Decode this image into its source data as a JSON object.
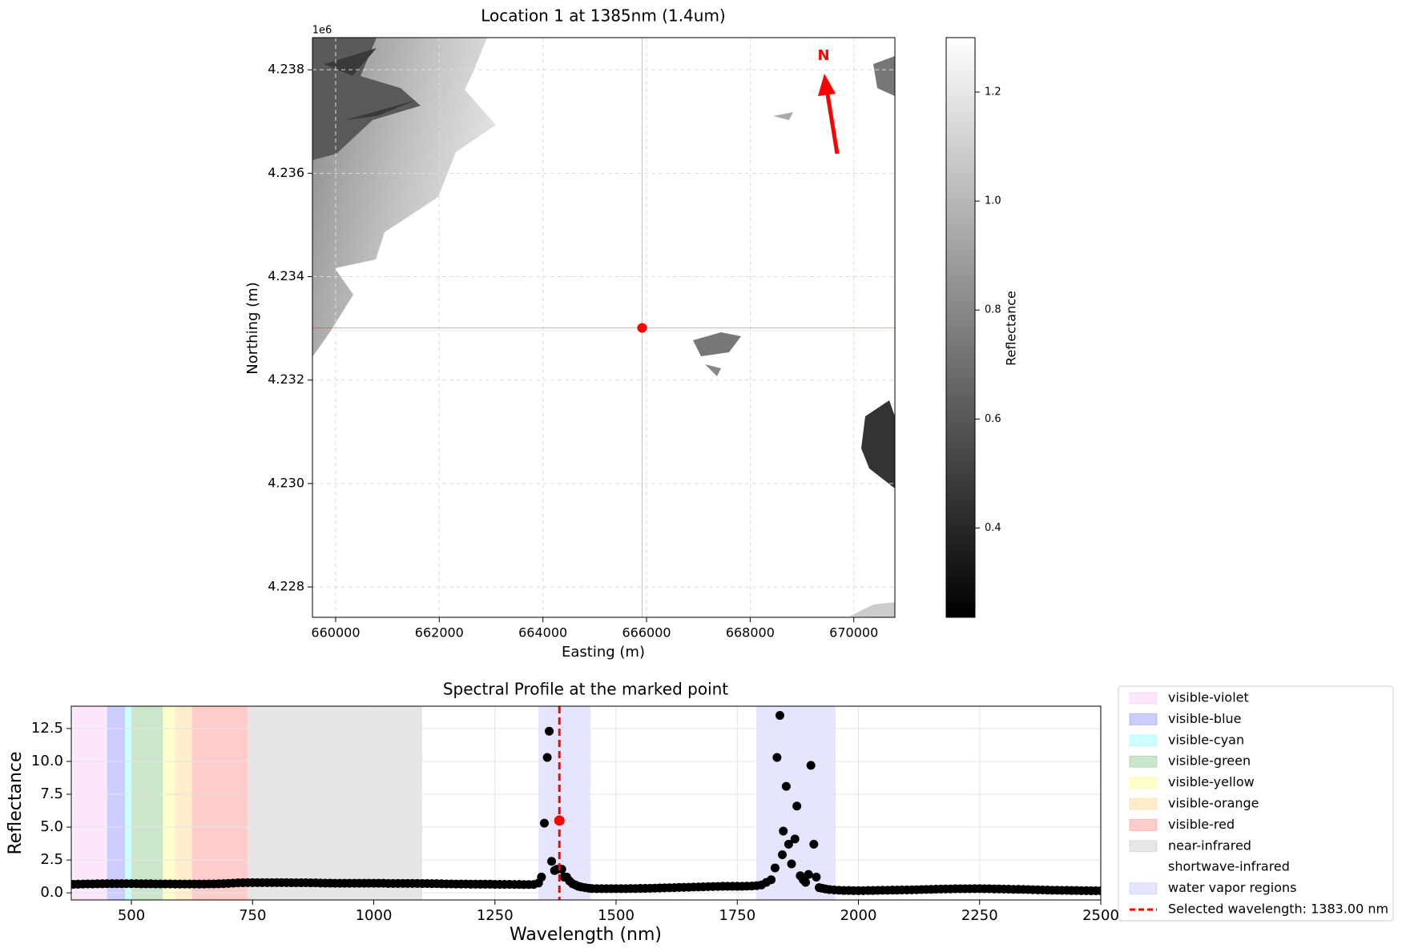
{
  "chart_data": [
    {
      "type": "map",
      "title": "Location 1 at 1385nm (1.4um)",
      "x_label": "Easting (m)",
      "y_label": "Northing (m)",
      "y_offset_label": "1e6",
      "xlim": [
        659552,
        670793
      ],
      "ylim": [
        4227413,
        4238622
      ],
      "xticks": [
        660000,
        662000,
        664000,
        666000,
        668000,
        670000
      ],
      "yticks": [
        {
          "value": 4228000,
          "label": "4.228"
        },
        {
          "value": 4230000,
          "label": "4.230"
        },
        {
          "value": 4232000,
          "label": "4.232"
        },
        {
          "value": 4234000,
          "label": "4.234"
        },
        {
          "value": 4236000,
          "label": "4.236"
        },
        {
          "value": 4238000,
          "label": "4.238"
        }
      ],
      "grid": true,
      "marker": {
        "x": 665914,
        "y": 4233009,
        "color": "#ff0000"
      },
      "north_label": "N",
      "colorbar": {
        "label": "Reflectance",
        "lim": [
          0.236,
          1.3
        ],
        "ticks": [
          0.4,
          0.6,
          0.8,
          {
            "value": 1,
            "label": "1.0"
          },
          1.2
        ]
      }
    },
    {
      "type": "scatter",
      "title": "Spectral Profile at the marked point",
      "x_label": "Wavelength (nm)",
      "y_label": "Reflectance",
      "xlim": [
        376,
        2500
      ],
      "ylim": [
        -0.54,
        14.2
      ],
      "xticks": [
        500,
        750,
        1000,
        1250,
        1500,
        1750,
        2000,
        2250,
        2500
      ],
      "yticks": [
        {
          "value": 0,
          "label": "0.0"
        },
        2.5,
        {
          "value": 5,
          "label": "5.0"
        },
        7.5,
        {
          "value": 10,
          "label": "10.0"
        },
        12.5
      ],
      "grid": true,
      "regions": [
        {
          "name": "visible-violet",
          "color": "#ee82ee",
          "alpha": 0.2,
          "ranges": [
            [
              380,
              450
            ]
          ]
        },
        {
          "name": "visible-blue",
          "color": "#0000ff",
          "alpha": 0.2,
          "ranges": [
            [
              450,
              487
            ]
          ]
        },
        {
          "name": "visible-cyan",
          "color": "#00ffff",
          "alpha": 0.2,
          "ranges": [
            [
              487,
              500
            ]
          ]
        },
        {
          "name": "visible-green",
          "color": "#008000",
          "alpha": 0.2,
          "ranges": [
            [
              500,
              565
            ]
          ]
        },
        {
          "name": "visible-yellow",
          "color": "#ffff00",
          "alpha": 0.2,
          "ranges": [
            [
              565,
              590
            ]
          ]
        },
        {
          "name": "visible-orange",
          "color": "#ffa500",
          "alpha": 0.2,
          "ranges": [
            [
              590,
              625
            ]
          ]
        },
        {
          "name": "visible-red",
          "color": "#ff0000",
          "alpha": 0.2,
          "ranges": [
            [
              625,
              740
            ]
          ]
        },
        {
          "name": "near-infrared",
          "color": "#808080",
          "alpha": 0.2,
          "ranges": [
            [
              740,
              1100
            ]
          ]
        },
        {
          "name": "shortwave-infrared",
          "color": "#ffffff",
          "alpha": 0.2,
          "ranges": [
            [
              1100,
              2500
            ]
          ]
        },
        {
          "name": "water vapor regions",
          "color": "#0000ff",
          "alpha": 0.1,
          "ranges": [
            [
              1340,
              1447
            ],
            [
              1789,
              1953
            ]
          ]
        }
      ],
      "series": [
        {
          "color": "#000000",
          "x": [
            380,
            390,
            400,
            410,
            420,
            430,
            440,
            450,
            460,
            470,
            480,
            490,
            500,
            510,
            520,
            530,
            540,
            550,
            560,
            570,
            580,
            590,
            600,
            610,
            620,
            630,
            640,
            650,
            660,
            670,
            680,
            690,
            700,
            710,
            720,
            730,
            740,
            750,
            760,
            770,
            780,
            790,
            800,
            810,
            820,
            830,
            840,
            850,
            860,
            870,
            880,
            890,
            900,
            910,
            920,
            930,
            940,
            950,
            960,
            970,
            980,
            990,
            1000,
            1010,
            1020,
            1030,
            1040,
            1050,
            1060,
            1070,
            1080,
            1090,
            1100,
            1110,
            1120,
            1130,
            1140,
            1150,
            1160,
            1170,
            1180,
            1190,
            1200,
            1210,
            1220,
            1230,
            1240,
            1250,
            1260,
            1270,
            1280,
            1290,
            1300,
            1310,
            1320,
            1330,
            1340,
            1346,
            1352,
            1358,
            1362,
            1367,
            1373,
            1378,
            1388,
            1393,
            1398,
            1404,
            1410,
            1416,
            1422,
            1428,
            1436,
            1444,
            1450,
            1460,
            1470,
            1480,
            1490,
            1500,
            1510,
            1520,
            1530,
            1540,
            1550,
            1560,
            1570,
            1580,
            1590,
            1600,
            1610,
            1620,
            1630,
            1640,
            1650,
            1660,
            1670,
            1680,
            1690,
            1700,
            1710,
            1720,
            1730,
            1740,
            1750,
            1760,
            1770,
            1780,
            1790,
            1800,
            1810,
            1820,
            1828,
            1832,
            1838,
            1843,
            1845,
            1851,
            1856,
            1862,
            1869,
            1873,
            1880,
            1886,
            1891,
            1897,
            1902,
            1908,
            1913,
            1919,
            1925,
            1932,
            1940,
            1950,
            1960,
            1970,
            1980,
            1990,
            2000,
            2010,
            2020,
            2030,
            2040,
            2050,
            2060,
            2070,
            2080,
            2090,
            2100,
            2110,
            2120,
            2130,
            2140,
            2150,
            2160,
            2170,
            2180,
            2190,
            2200,
            2210,
            2220,
            2230,
            2240,
            2250,
            2260,
            2270,
            2280,
            2290,
            2300,
            2310,
            2320,
            2330,
            2340,
            2350,
            2360,
            2370,
            2380,
            2390,
            2400,
            2410,
            2420,
            2430,
            2440,
            2450,
            2460,
            2470,
            2480,
            2490,
            2500
          ],
          "values": [
            0.65,
            0.66,
            0.67,
            0.68,
            0.68,
            0.69,
            0.69,
            0.7,
            0.7,
            0.7,
            0.7,
            0.7,
            0.7,
            0.7,
            0.69,
            0.69,
            0.69,
            0.68,
            0.68,
            0.68,
            0.68,
            0.67,
            0.67,
            0.67,
            0.67,
            0.67,
            0.67,
            0.67,
            0.68,
            0.68,
            0.69,
            0.7,
            0.72,
            0.74,
            0.76,
            0.77,
            0.78,
            0.78,
            0.78,
            0.78,
            0.78,
            0.78,
            0.78,
            0.78,
            0.78,
            0.77,
            0.77,
            0.77,
            0.77,
            0.76,
            0.76,
            0.75,
            0.74,
            0.74,
            0.73,
            0.73,
            0.73,
            0.73,
            0.73,
            0.73,
            0.73,
            0.73,
            0.73,
            0.73,
            0.73,
            0.72,
            0.72,
            0.72,
            0.72,
            0.72,
            0.72,
            0.72,
            0.71,
            0.71,
            0.7,
            0.7,
            0.69,
            0.68,
            0.68,
            0.67,
            0.67,
            0.67,
            0.66,
            0.66,
            0.66,
            0.66,
            0.66,
            0.65,
            0.65,
            0.65,
            0.65,
            0.64,
            0.64,
            0.63,
            0.63,
            0.64,
            0.75,
            1.2,
            5.3,
            10.3,
            12.3,
            2.4,
            1.7,
            1.8,
            1.8,
            1.2,
            1.2,
            0.9,
            0.7,
            0.6,
            0.5,
            0.45,
            0.4,
            0.35,
            0.33,
            0.32,
            0.32,
            0.32,
            0.32,
            0.32,
            0.32,
            0.32,
            0.33,
            0.33,
            0.34,
            0.34,
            0.35,
            0.36,
            0.37,
            0.38,
            0.39,
            0.4,
            0.41,
            0.42,
            0.43,
            0.44,
            0.45,
            0.46,
            0.47,
            0.48,
            0.49,
            0.5,
            0.5,
            0.5,
            0.5,
            0.5,
            0.51,
            0.52,
            0.55,
            0.6,
            0.8,
            1.0,
            1.9,
            10.3,
            13.5,
            2.9,
            4.7,
            8.1,
            3.7,
            2.2,
            4.1,
            6.6,
            1.3,
            1.0,
            0.8,
            1.4,
            9.7,
            3.7,
            1.2,
            0.4,
            0.35,
            0.3,
            0.25,
            0.22,
            0.2,
            0.18,
            0.18,
            0.17,
            0.17,
            0.17,
            0.18,
            0.18,
            0.19,
            0.2,
            0.2,
            0.21,
            0.21,
            0.22,
            0.22,
            0.23,
            0.24,
            0.25,
            0.26,
            0.27,
            0.28,
            0.29,
            0.3,
            0.3,
            0.31,
            0.31,
            0.31,
            0.31,
            0.32,
            0.32,
            0.31,
            0.31,
            0.3,
            0.3,
            0.29,
            0.28,
            0.27,
            0.27,
            0.26,
            0.25,
            0.24,
            0.23,
            0.22,
            0.21,
            0.2,
            0.2,
            0.19,
            0.19,
            0.18,
            0.18,
            0.17,
            0.17,
            0.16,
            0.16,
            0.16
          ]
        }
      ],
      "selected": {
        "label": "Selected wavelength: 1383.00 nm",
        "wavelength": 1383,
        "value": 5.5,
        "color": "#ff0000"
      }
    }
  ]
}
